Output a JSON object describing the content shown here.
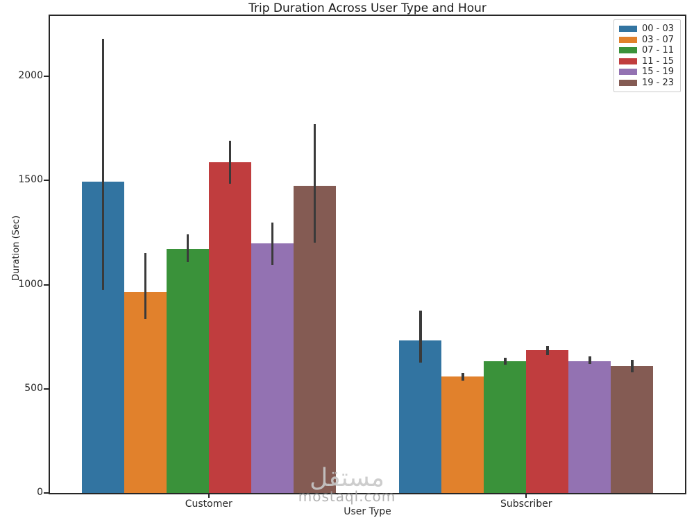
{
  "chart_data": {
    "type": "bar",
    "title": "Trip Duration Across User Type and Hour",
    "xlabel": "User Type",
    "ylabel": "Duration (Sec)",
    "categories": [
      "Customer",
      "Subscriber"
    ],
    "yticks": [
      0,
      500,
      1000,
      1500,
      2000
    ],
    "ylim": [
      0,
      2290
    ],
    "grid": false,
    "legend_position": "upper right",
    "group_width_fraction": 0.8,
    "error_bar_color": "#3a3a3a",
    "axis_color": "#262626",
    "series": [
      {
        "name": "00 - 03",
        "color": "#3274a1",
        "values": [
          1495,
          733
        ],
        "ci": [
          [
            975,
            2180
          ],
          [
            627,
            876
          ]
        ]
      },
      {
        "name": "03 - 07",
        "color": "#e1812c",
        "values": [
          965,
          558
        ],
        "ci": [
          [
            835,
            1150
          ],
          [
            539,
            575
          ]
        ]
      },
      {
        "name": "07 - 11",
        "color": "#3a923a",
        "values": [
          1173,
          631
        ],
        "ci": [
          [
            1110,
            1240
          ],
          [
            617,
            650
          ]
        ]
      },
      {
        "name": "11 - 15",
        "color": "#c03d3e",
        "values": [
          1588,
          686
        ],
        "ci": [
          [
            1483,
            1690
          ],
          [
            663,
            706
          ]
        ]
      },
      {
        "name": "15 - 19",
        "color": "#9372b2",
        "values": [
          1197,
          633
        ],
        "ci": [
          [
            1095,
            1297
          ],
          [
            619,
            656
          ]
        ]
      },
      {
        "name": "19 - 23",
        "color": "#845b53",
        "values": [
          1474,
          608
        ],
        "ci": [
          [
            1200,
            1772
          ],
          [
            580,
            639
          ]
        ]
      }
    ]
  },
  "watermark": {
    "arabic": "مستقل",
    "domain": "mostaql.com"
  }
}
